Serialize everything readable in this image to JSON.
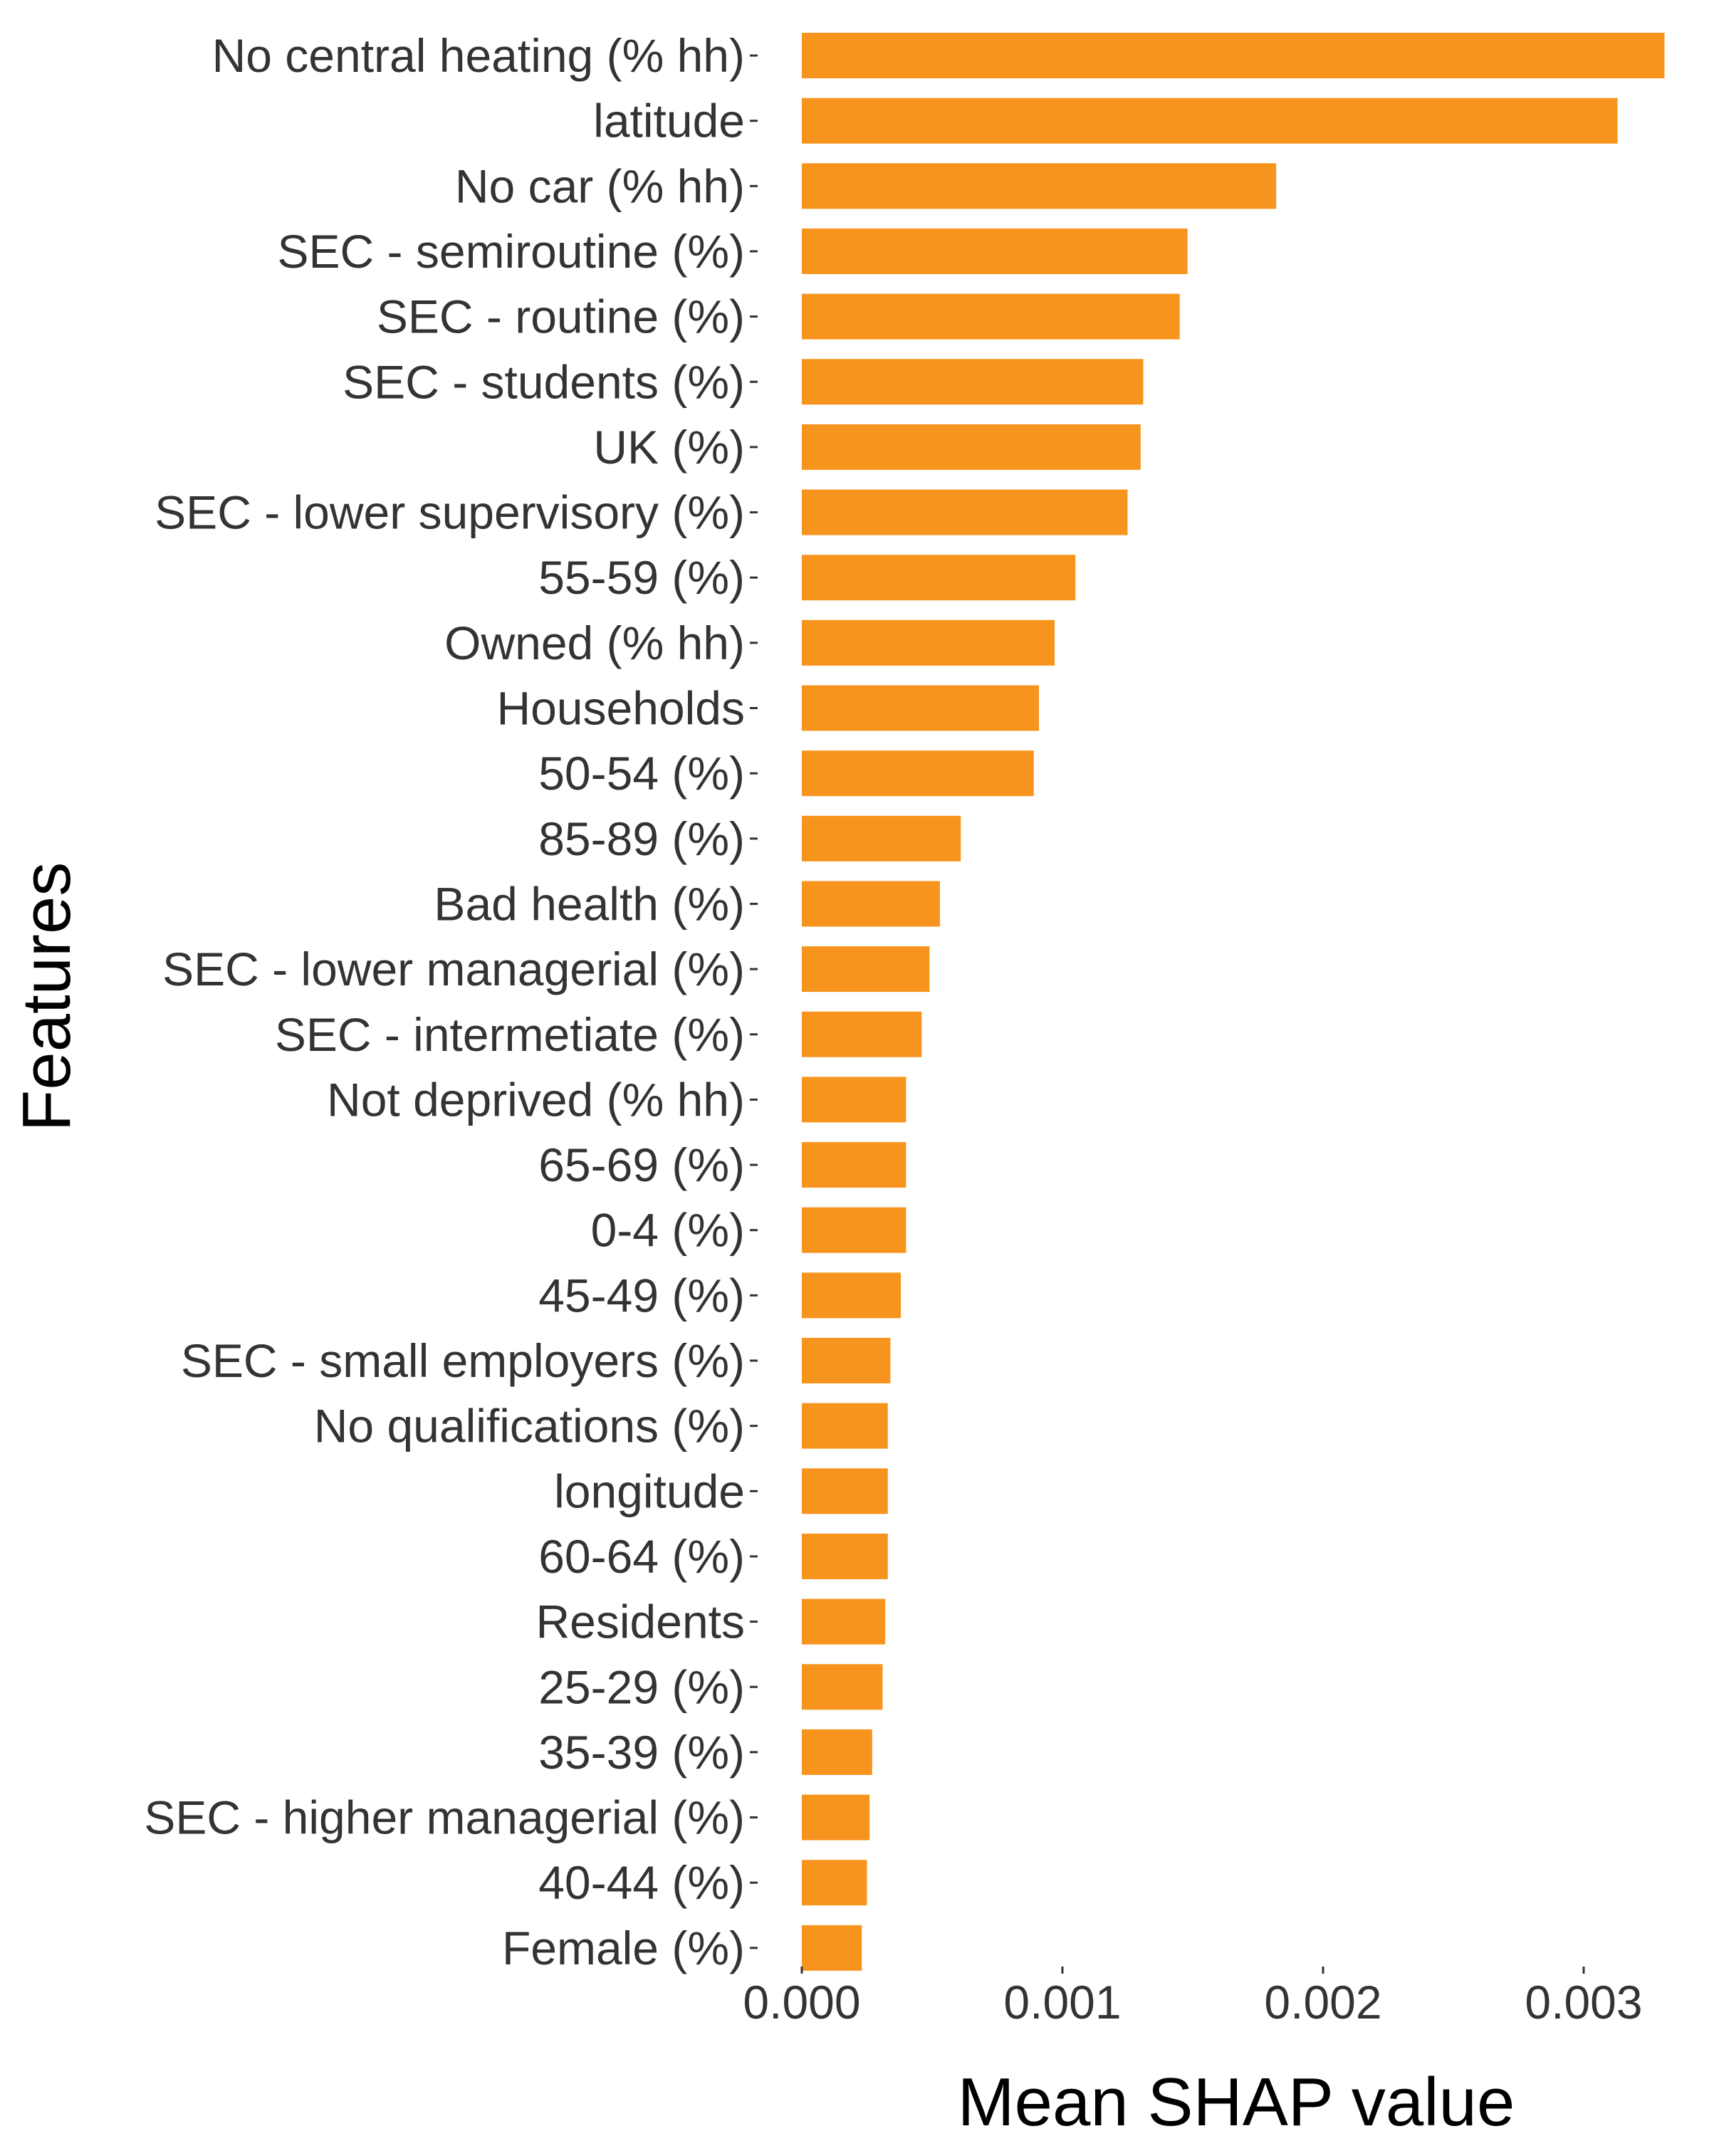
{
  "chart_data": {
    "type": "bar",
    "orientation": "horizontal",
    "xlabel": "Mean SHAP value",
    "ylabel": "Features",
    "xlim": [
      0,
      0.00332
    ],
    "xticks": [
      0.0,
      0.001,
      0.002,
      0.003
    ],
    "xtick_labels": [
      "0.000",
      "0.001",
      "0.002",
      "0.003"
    ],
    "grid": false,
    "bar_color": "#F7941D",
    "categories": [
      "No central heating (% hh)",
      "latitude",
      "No car (% hh)",
      "SEC - semiroutine (%)",
      "SEC - routine (%)",
      "SEC - students (%)",
      "UK (%)",
      "SEC - lower supervisory (%)",
      "55-59 (%)",
      "Owned (% hh)",
      "Households",
      "50-54 (%)",
      "85-89 (%)",
      "Bad health (%)",
      "SEC - lower managerial (%)",
      "SEC - intermetiate (%)",
      "Not deprived (% hh)",
      "65-69 (%)",
      "0-4 (%)",
      "45-49 (%)",
      "SEC - small employers (%)",
      "No qualifications (%)",
      "longitude",
      "60-64 (%)",
      "Residents",
      "25-29 (%)",
      "35-39 (%)",
      "SEC - higher managerial (%)",
      "40-44 (%)",
      "Female (%)"
    ],
    "values": [
      0.00331,
      0.00313,
      0.00182,
      0.00148,
      0.00145,
      0.00131,
      0.0013,
      0.00125,
      0.00105,
      0.00097,
      0.00091,
      0.00089,
      0.00061,
      0.00053,
      0.00049,
      0.00046,
      0.0004,
      0.0004,
      0.0004,
      0.00038,
      0.00034,
      0.00033,
      0.00033,
      0.00033,
      0.00032,
      0.00031,
      0.00027,
      0.00026,
      0.00025,
      0.00023
    ]
  }
}
